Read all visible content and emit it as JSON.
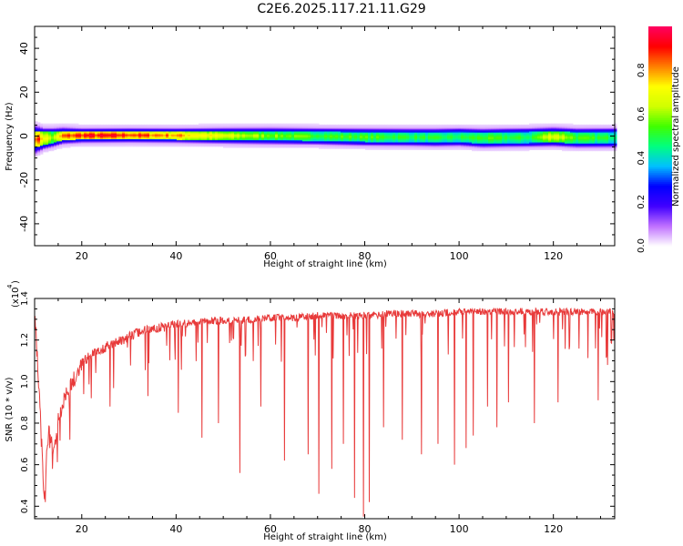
{
  "title": "C2E6.2025.117.21.11.G29",
  "chart_data": [
    {
      "type": "heatmap",
      "xlabel": "Height of straight line (km)",
      "ylabel": "Frequency (Hz)",
      "xlim": [
        10,
        133
      ],
      "ylim": [
        -50,
        50
      ],
      "xticks": [
        20,
        40,
        60,
        80,
        100,
        120
      ],
      "yticks": [
        -40,
        -20,
        0,
        20,
        40
      ],
      "grid": false,
      "colorbar": {
        "label": "Normalized spectral amplitude",
        "range": [
          0,
          1
        ],
        "ticks": [
          "0.0",
          "0.2",
          "0.4",
          "0.6",
          "0.8"
        ],
        "colors": [
          "#ffffff",
          "#c070ff",
          "#4000ff",
          "#0000ff",
          "#00c0ff",
          "#00ff80",
          "#40ff00",
          "#d0ff00",
          "#ffff00",
          "#ff8000",
          "#ff0000",
          "#ff0060"
        ]
      },
      "band": {
        "x": [
          10,
          12,
          14,
          16,
          20,
          30,
          40,
          50,
          60,
          70,
          80,
          90,
          95,
          100,
          105,
          110,
          115,
          120,
          125,
          133
        ],
        "center": [
          -1.5,
          -1,
          -0.5,
          0.3,
          0.4,
          0.5,
          0.4,
          0.3,
          0.2,
          0,
          -0.3,
          -0.4,
          -0.5,
          -0.3,
          -0.8,
          -0.6,
          -0.5,
          -0.2,
          -0.7,
          -0.6
        ],
        "peak_amplitude": [
          0.95,
          0.75,
          0.6,
          0.85,
          0.93,
          0.9,
          0.82,
          0.68,
          0.6,
          0.55,
          0.55,
          0.52,
          0.5,
          0.5,
          0.55,
          0.52,
          0.5,
          0.72,
          0.55,
          0.5
        ],
        "core_halfwidth": [
          3.5,
          3,
          2.5,
          2,
          1.8,
          1.8,
          1.9,
          2,
          2,
          2.1,
          2.2,
          2.2,
          2.3,
          2.3,
          2.5,
          2.5,
          2.5,
          2.5,
          2.6,
          2.6
        ],
        "halo_halfwidth": [
          7,
          5,
          4.5,
          4,
          3.5,
          3.5,
          3.5,
          3.8,
          4,
          4,
          4.2,
          4.2,
          4.3,
          4.3,
          4.5,
          4.5,
          4.5,
          4.6,
          4.6,
          4.6
        ]
      }
    },
    {
      "type": "line",
      "xlabel": "Height of straight line (km)",
      "ylabel": "SNR (10 * v/v)",
      "y_scale_label": "(x10",
      "y_scale_exponent": "4",
      "y_scale_close": ")",
      "xlim": [
        10,
        133
      ],
      "ylim": [
        0.34,
        1.4
      ],
      "xticks": [
        20,
        40,
        60,
        80,
        100,
        120
      ],
      "yticks": [
        0.4,
        0.6,
        0.8,
        1.0,
        1.2,
        1.4
      ],
      "ytick_labels": [
        "0.4",
        "0.6",
        "0.8",
        "1.0",
        "1.2",
        "1.4"
      ],
      "line_color": "#e83a3a",
      "grid": false,
      "series": [
        {
          "x": [
            10,
            10.5,
            11,
            11.5,
            12,
            12.5,
            13,
            13.5,
            14,
            15,
            16,
            17,
            18,
            19,
            20,
            22,
            24,
            26,
            28,
            30,
            32,
            35,
            38,
            40,
            45,
            50,
            55,
            60,
            65,
            70,
            75,
            80,
            85,
            90,
            95,
            100,
            105,
            110,
            115,
            120,
            125,
            130,
            133
          ],
          "y": [
            1.34,
            1.15,
            0.95,
            0.7,
            0.45,
            0.62,
            0.78,
            0.72,
            0.64,
            0.82,
            0.9,
            0.96,
            1.0,
            1.05,
            1.1,
            1.13,
            1.16,
            1.18,
            1.2,
            1.22,
            1.24,
            1.26,
            1.27,
            1.28,
            1.29,
            1.3,
            1.3,
            1.31,
            1.31,
            1.32,
            1.32,
            1.32,
            1.33,
            1.33,
            1.33,
            1.34,
            1.34,
            1.34,
            1.34,
            1.34,
            1.34,
            1.34,
            1.34
          ]
        }
      ],
      "dips": [
        {
          "x": 12.3,
          "y": 0.42
        },
        {
          "x": 13.8,
          "y": 0.58
        },
        {
          "x": 17.5,
          "y": 0.72
        },
        {
          "x": 22,
          "y": 0.92
        },
        {
          "x": 26,
          "y": 0.88
        },
        {
          "x": 34,
          "y": 0.93
        },
        {
          "x": 40.5,
          "y": 0.85
        },
        {
          "x": 45.5,
          "y": 0.73
        },
        {
          "x": 49,
          "y": 0.8
        },
        {
          "x": 53.5,
          "y": 0.56
        },
        {
          "x": 58,
          "y": 0.88
        },
        {
          "x": 63,
          "y": 0.62
        },
        {
          "x": 68,
          "y": 0.65
        },
        {
          "x": 70.3,
          "y": 0.46
        },
        {
          "x": 73,
          "y": 0.58
        },
        {
          "x": 75.5,
          "y": 0.7
        },
        {
          "x": 77.8,
          "y": 0.44
        },
        {
          "x": 79.7,
          "y": 0.35
        },
        {
          "x": 81,
          "y": 0.42
        },
        {
          "x": 84,
          "y": 0.78
        },
        {
          "x": 88,
          "y": 0.72
        },
        {
          "x": 92,
          "y": 0.65
        },
        {
          "x": 95.5,
          "y": 0.7
        },
        {
          "x": 99,
          "y": 0.6
        },
        {
          "x": 101.5,
          "y": 0.68
        },
        {
          "x": 103,
          "y": 0.74
        },
        {
          "x": 106,
          "y": 0.88
        },
        {
          "x": 108,
          "y": 0.78
        },
        {
          "x": 110.5,
          "y": 0.9
        },
        {
          "x": 116,
          "y": 0.8
        },
        {
          "x": 121,
          "y": 0.9
        },
        {
          "x": 129.5,
          "y": 0.91
        },
        {
          "x": 131.5,
          "y": 1.08
        }
      ]
    }
  ]
}
